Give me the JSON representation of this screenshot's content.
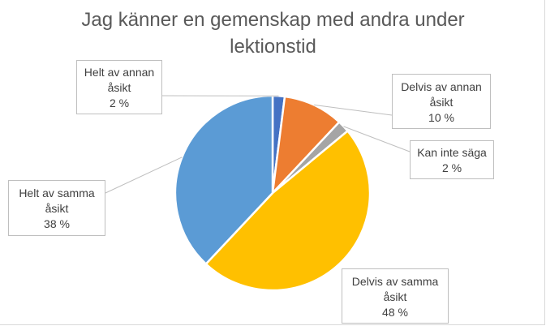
{
  "chart_data": {
    "type": "pie",
    "title_lines": [
      "Jag känner en gemenskap med andra under",
      "lektionstid"
    ],
    "slices": [
      {
        "lines": [
          "Helt av annan",
          "åsikt"
        ],
        "value_label": "2 %",
        "value": 2,
        "color": "#4472c4"
      },
      {
        "lines": [
          "Delvis av annan",
          "åsikt"
        ],
        "value_label": "10 %",
        "value": 10,
        "color": "#ed7d31"
      },
      {
        "lines": [
          "Kan inte säga"
        ],
        "value_label": "2 %",
        "value": 2,
        "color": "#a5a5a5"
      },
      {
        "lines": [
          "Delvis av samma",
          "åsikt"
        ],
        "value_label": "48 %",
        "value": 48,
        "color": "#ffc000"
      },
      {
        "lines": [
          "Helt av samma",
          "åsikt"
        ],
        "value_label": "38 %",
        "value": 38,
        "color": "#5b9bd5"
      }
    ]
  }
}
